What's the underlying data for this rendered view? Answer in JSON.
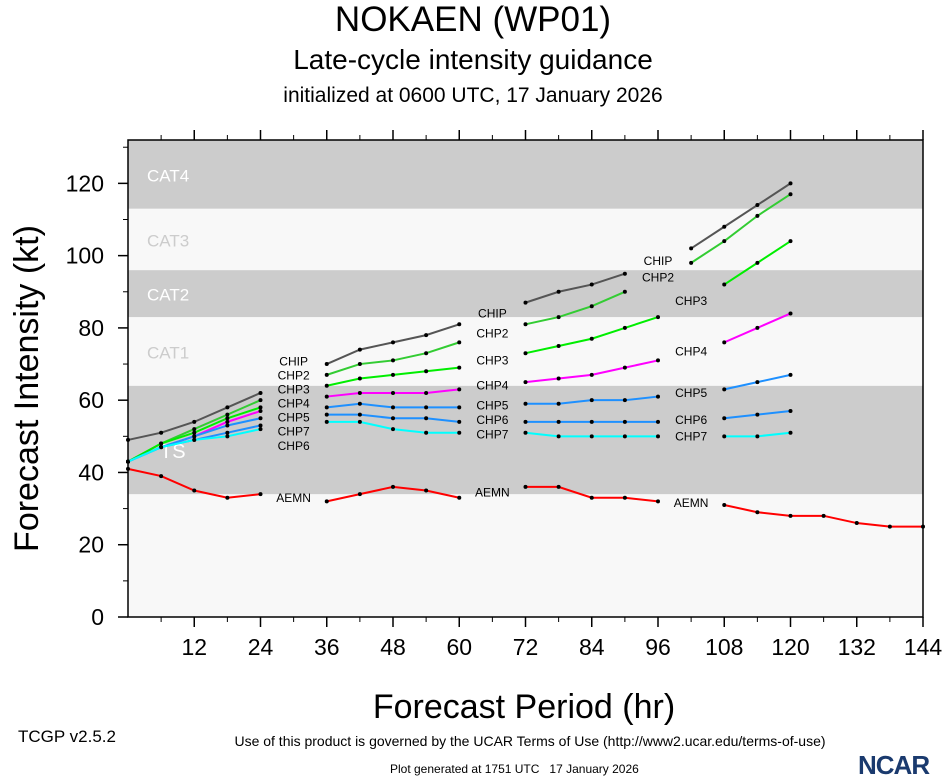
{
  "header": {
    "title": "NOKAEN (WP01)",
    "subtitle": "Late-cycle intensity guidance",
    "init": "initialized at 0600 UTC, 17 January 2026"
  },
  "footer": {
    "version": "TCGP v2.5.2",
    "terms": "Use of this product is governed by the UCAR Terms of Use (http://www2.ucar.edu/terms-of-use)",
    "generated": "Plot generated at 1751 UTC   17 January 2026",
    "logo": "NCAR"
  },
  "chart_data": {
    "type": "line",
    "xlabel": "Forecast Period (hr)",
    "ylabel": "Forecast Intensity (kt)",
    "xlim": [
      0,
      144
    ],
    "ylim": [
      0,
      132
    ],
    "xticks": [
      12,
      24,
      36,
      48,
      60,
      72,
      84,
      96,
      108,
      120,
      132,
      144
    ],
    "yticks": [
      0,
      20,
      40,
      60,
      80,
      100,
      120
    ],
    "bands": [
      {
        "name": "TS",
        "from": 34,
        "to": 64,
        "color": "#cccccc"
      },
      {
        "name": "CAT1",
        "from": 64,
        "to": 83,
        "color": "#f8f8f8"
      },
      {
        "name": "CAT2",
        "from": 83,
        "to": 96,
        "color": "#cccccc"
      },
      {
        "name": "CAT3",
        "from": 96,
        "to": 113,
        "color": "#f8f8f8"
      },
      {
        "name": "CAT4",
        "from": 113,
        "to": 132,
        "color": "#cccccc"
      }
    ],
    "x": [
      0,
      6,
      12,
      18,
      24,
      30,
      36,
      42,
      48,
      54,
      60,
      66,
      72,
      78,
      84,
      90,
      96,
      102,
      108,
      114,
      120,
      126,
      132,
      138,
      144
    ],
    "series": [
      {
        "name": "CHIP",
        "color": "#555555",
        "label_hours": [
          30,
          66,
          102
        ],
        "values": [
          49,
          51,
          54,
          58,
          62,
          null,
          70,
          74,
          76,
          78,
          81,
          null,
          87,
          90,
          92,
          95,
          null,
          102,
          108,
          114,
          120,
          null,
          null,
          null,
          null
        ]
      },
      {
        "name": "CHP2",
        "color": "#33cc33",
        "label_hours": [
          30,
          66,
          96
        ],
        "values": [
          43,
          48,
          52,
          56,
          60,
          null,
          67,
          70,
          71,
          73,
          76,
          null,
          81,
          83,
          86,
          90,
          null,
          98,
          104,
          111,
          117,
          null,
          null,
          null,
          null
        ]
      },
      {
        "name": "CHP3",
        "color": "#00ee00",
        "label_hours": [
          30,
          66,
          102
        ],
        "values": [
          43,
          48,
          51,
          55,
          58,
          null,
          64,
          66,
          67,
          68,
          69,
          null,
          73,
          75,
          77,
          80,
          83,
          null,
          92,
          98,
          104,
          null,
          null,
          null,
          null
        ]
      },
      {
        "name": "CHP4",
        "color": "#ff00ff",
        "label_hours": [
          30,
          66,
          102
        ],
        "values": [
          43,
          47,
          50,
          54,
          57,
          null,
          61,
          62,
          62,
          62,
          63,
          null,
          65,
          66,
          67,
          69,
          71,
          null,
          76,
          80,
          84,
          null,
          null,
          null,
          null
        ]
      },
      {
        "name": "CHP5",
        "color": "#1e90ff",
        "label_hours": [
          30,
          66,
          102
        ],
        "values": [
          43,
          47,
          50,
          53,
          55,
          null,
          58,
          59,
          58,
          58,
          58,
          null,
          59,
          59,
          60,
          60,
          61,
          null,
          63,
          65,
          67,
          null,
          null,
          null,
          null
        ]
      },
      {
        "name": "CHP6",
        "color": "#1e90ff",
        "label_hours": [
          30,
          66,
          102
        ],
        "values": [
          43,
          47,
          49,
          51,
          53,
          null,
          56,
          56,
          55,
          55,
          54,
          null,
          54,
          54,
          54,
          54,
          54,
          null,
          55,
          56,
          57,
          null,
          null,
          null,
          null
        ]
      },
      {
        "name": "CHP7",
        "color": "#00ffff",
        "label_hours": [
          30,
          66,
          102
        ],
        "values": [
          43,
          47,
          49,
          50,
          52,
          null,
          54,
          54,
          52,
          51,
          51,
          null,
          51,
          50,
          50,
          50,
          50,
          null,
          50,
          50,
          51,
          null,
          null,
          null,
          null
        ]
      },
      {
        "name": "AEMN",
        "color": "#ff0000",
        "label_hours": [
          30,
          66,
          102
        ],
        "values": [
          41,
          39,
          35,
          33,
          34,
          null,
          32,
          34,
          36,
          35,
          33,
          null,
          36,
          36,
          33,
          33,
          32,
          null,
          31,
          29,
          28,
          28,
          26,
          25,
          25
        ]
      }
    ]
  }
}
